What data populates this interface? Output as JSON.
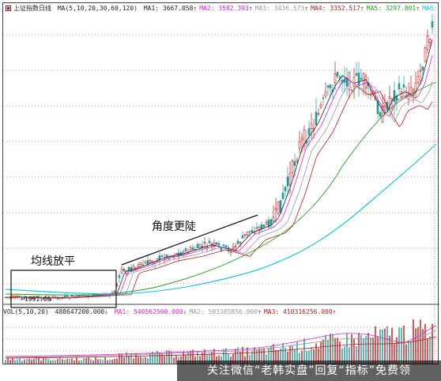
{
  "header": {
    "title": "上证指数日线",
    "ma_params": "MA(5,10,20,30,60,120)",
    "ma": [
      {
        "label": "MA1:",
        "value": "3667.058",
        "arrow": "↑",
        "color": "#222222"
      },
      {
        "label": "MA2:",
        "value": "3582.393",
        "arrow": "↑",
        "color": "#e020e0"
      },
      {
        "label": "MA3:",
        "value": "3436.573",
        "arrow": "↑",
        "color": "#9a9a9a"
      },
      {
        "label": "MA4:",
        "value": "3352.517",
        "arrow": "↑",
        "color": "#c01818"
      },
      {
        "label": "MA5:",
        "value": "3297.801",
        "arrow": "↑",
        "color": "#1aa81a"
      },
      {
        "label": "MA6:",
        "value": "",
        "arrow": "",
        "color": "#18c8e8"
      }
    ]
  },
  "volume_header": {
    "params": "VOL(5,10,20)",
    "vol_value": "488647200.000",
    "vol_arrow": "↓",
    "ma": [
      {
        "label": "MA1:",
        "value": "540562560.000",
        "arrow": "↓",
        "color": "#e020e0"
      },
      {
        "label": "MA2:",
        "value": "503385856.000",
        "arrow": "↑",
        "color": "#9a9a9a"
      },
      {
        "label": "MA3:",
        "value": "410316256.000",
        "arrow": "↑",
        "color": "#c01818"
      }
    ]
  },
  "annotations": {
    "box_label": "均线放平",
    "trend_label": "角度更陡",
    "date_marker": "←1991.06"
  },
  "watermark": "关注微信“老韩实盘”回复“指标”免费领",
  "colors": {
    "up": "#c01818",
    "down": "#1a9a9a",
    "gridline": "#c01818"
  }
}
